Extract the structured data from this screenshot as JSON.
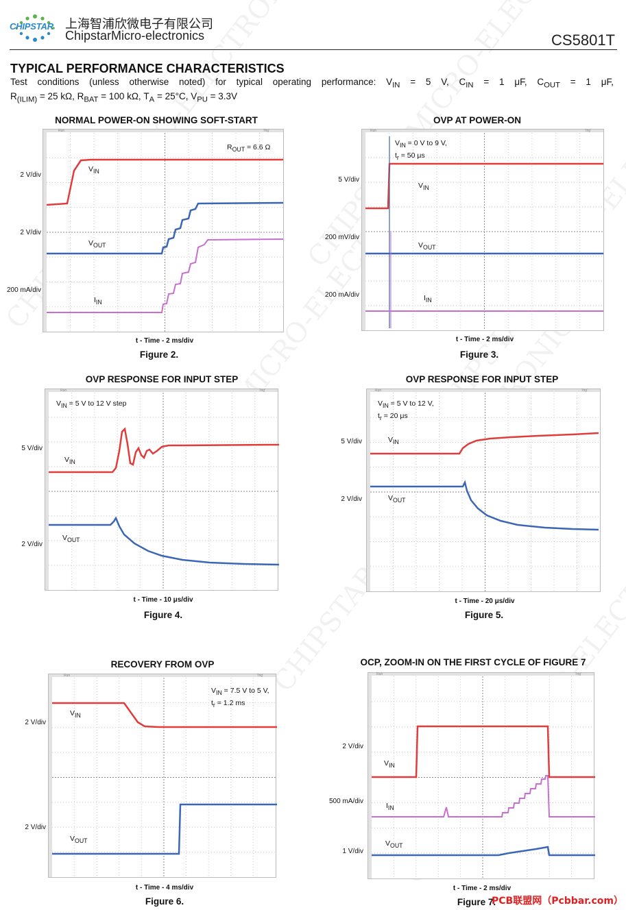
{
  "header": {
    "logo_word": "CHIPSTAR",
    "company_cn": "上海智浦欣微电子有限公司",
    "company_en": "ChipstarMicro-electronics",
    "part_number": "CS5801T"
  },
  "section_title": "TYPICAL PERFORMANCE CHARACTERISTICS",
  "conditions": {
    "l1a": "Test conditions (unless otherwise noted) for typical operating performance: V",
    "l1b": "IN",
    "l1c": " = 5 V, C",
    "l1d": "IN",
    "l1e": " = 1 μF, C",
    "l1f": "OUT",
    "l1g": " = 1 μF,",
    "l2a": "R",
    "l2b": "(ILIM)",
    "l2c": " = 25 kΩ, R",
    "l2d": "BAT",
    "l2e": " = 100 kΩ, T",
    "l2f": "A",
    "l2g": " = 25°C, V",
    "l2h": "PU",
    "l2i": " = 3.3V"
  },
  "watermark": "CHIPSTAR MICRO-ELECTRONICS",
  "scope_tab_labels": [
    "Run",
    "Trig'"
  ],
  "figures": [
    {
      "title": "NORMAL POWER-ON SHOWING SOFT-START",
      "time_axis": "t - Time - 2 ms/div",
      "caption": "Figure 2.",
      "div_labels": [
        "2 V/div",
        "2 V/div",
        "200 mA/div"
      ],
      "annotations": [
        {
          "main": "R",
          "sub": "OUT",
          "rest": " = 6.6 Ω"
        }
      ],
      "trace_labels": [
        {
          "main": "V",
          "sub": "IN"
        },
        {
          "main": "V",
          "sub": "OUT"
        },
        {
          "main": "I",
          "sub": "IN"
        }
      ],
      "colors": {
        "vin": "#e03c3c",
        "vout": "#3b66b5",
        "iin": "#c76ed0"
      }
    },
    {
      "title": "OVP AT POWER-ON",
      "time_axis": "t - Time - 2 ms/div",
      "caption": "Figure 3.",
      "div_labels": [
        "5 V/div",
        "200 mV/div",
        "200 mA/div"
      ],
      "annotations": [
        {
          "main": "V",
          "sub": "IN",
          "rest": " = 0 V to 9 V,"
        },
        {
          "main": "t",
          "sub": "r",
          "rest": " = 50 μs"
        }
      ],
      "trace_labels": [
        {
          "main": "V",
          "sub": "IN"
        },
        {
          "main": "V",
          "sub": "OUT"
        },
        {
          "main": "I",
          "sub": "IN"
        }
      ]
    },
    {
      "title": "OVP RESPONSE FOR INPUT STEP",
      "time_axis": "t - Time - 10 μs/div",
      "caption": "Figure 4.",
      "div_labels": [
        "5 V/div",
        "2 V/div"
      ],
      "annotations": [
        {
          "main": "V",
          "sub": "IN",
          "rest": " = 5 V to 12 V step"
        }
      ],
      "trace_labels": [
        {
          "main": "V",
          "sub": "IN"
        },
        {
          "main": "V",
          "sub": "OUT"
        }
      ]
    },
    {
      "title": "OVP RESPONSE FOR INPUT STEP",
      "time_axis": "t - Time - 20 μs/div",
      "caption": "Figure 5.",
      "div_labels": [
        "5 V/div",
        "2 V/div"
      ],
      "annotations": [
        {
          "main": "V",
          "sub": "IN",
          "rest": " = 5 V to 12 V,"
        },
        {
          "main": "t",
          "sub": "r",
          "rest": " = 20 μs"
        }
      ],
      "trace_labels": [
        {
          "main": "V",
          "sub": "IN"
        },
        {
          "main": "V",
          "sub": "OUT"
        }
      ]
    },
    {
      "title": "RECOVERY FROM OVP",
      "time_axis": "t - Time - 4 ms/div",
      "caption": "Figure 6.",
      "div_labels": [
        "2 V/div",
        "2 V/div"
      ],
      "annotations": [
        {
          "main": "V",
          "sub": "IN",
          "rest": " = 7.5 V to 5 V,"
        },
        {
          "main": "t",
          "sub": "r",
          "rest": " = 1.2 ms"
        }
      ],
      "trace_labels": [
        {
          "main": "V",
          "sub": "IN"
        },
        {
          "main": "V",
          "sub": "OUT"
        }
      ]
    },
    {
      "title": "OCP, ZOOM-IN ON THE FIRST CYCLE OF FIGURE 7",
      "time_axis": "t - Time - 2 ms/div",
      "caption": "Figure 7.",
      "div_labels": [
        "2 V/div",
        "500 mA/div",
        "1 V/div"
      ],
      "annotations": [],
      "trace_labels": [
        {
          "main": "V",
          "sub": "IN"
        },
        {
          "main": "I",
          "sub": "IN"
        },
        {
          "main": "V",
          "sub": "OUT"
        }
      ]
    }
  ],
  "footer_mark": "PCB联盟网（Pcbbar.com）"
}
